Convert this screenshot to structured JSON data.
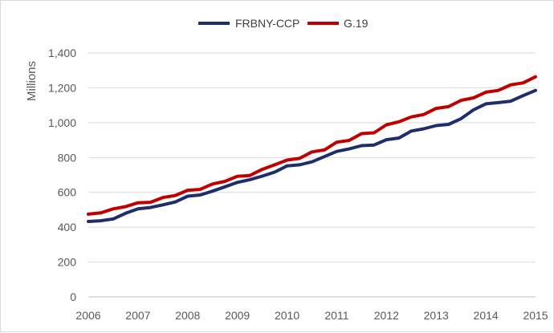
{
  "chart_data": {
    "type": "line",
    "title": "",
    "xlabel": "",
    "ylabel": "Millions",
    "ylim": [
      0,
      1400
    ],
    "yticks": [
      0,
      200,
      400,
      600,
      800,
      1000,
      1200,
      1400
    ],
    "ytick_labels": [
      "0",
      "200",
      "400",
      "600",
      "800",
      "1,000",
      "1,200",
      "1,400"
    ],
    "xlim": [
      2006,
      2015
    ],
    "xticks": [
      2006,
      2007,
      2008,
      2009,
      2010,
      2011,
      2012,
      2013,
      2014,
      2015
    ],
    "xtick_labels": [
      "2006",
      "2007",
      "2008",
      "2009",
      "2010",
      "2011",
      "2012",
      "2013",
      "2014",
      "2015"
    ],
    "grid": "horizontal",
    "legend_position": "top-center",
    "x": [
      2006.0,
      2006.25,
      2006.5,
      2006.75,
      2007.0,
      2007.25,
      2007.5,
      2007.75,
      2008.0,
      2008.25,
      2008.5,
      2008.75,
      2009.0,
      2009.25,
      2009.5,
      2009.75,
      2010.0,
      2010.25,
      2010.5,
      2010.75,
      2011.0,
      2011.25,
      2011.5,
      2011.75,
      2012.0,
      2012.25,
      2012.5,
      2012.75,
      2013.0,
      2013.25,
      2013.5,
      2013.75,
      2014.0,
      2014.25,
      2014.5,
      2014.75,
      2015.0
    ],
    "series": [
      {
        "name": "FRBNY-CCP",
        "color": "#1f2d6b",
        "values": [
          433,
          437,
          447,
          480,
          505,
          513,
          528,
          545,
          578,
          585,
          607,
          632,
          657,
          673,
          693,
          716,
          752,
          758,
          775,
          805,
          835,
          849,
          868,
          872,
          902,
          912,
          952,
          965,
          983,
          990,
          1023,
          1073,
          1108,
          1115,
          1123,
          1155,
          1185
        ]
      },
      {
        "name": "G.19",
        "color": "#c00000",
        "values": [
          475,
          482,
          505,
          518,
          540,
          543,
          570,
          582,
          612,
          617,
          648,
          663,
          692,
          697,
          732,
          758,
          785,
          795,
          832,
          843,
          888,
          898,
          937,
          942,
          988,
          1005,
          1033,
          1047,
          1082,
          1092,
          1128,
          1142,
          1175,
          1185,
          1217,
          1228,
          1263
        ]
      }
    ]
  }
}
